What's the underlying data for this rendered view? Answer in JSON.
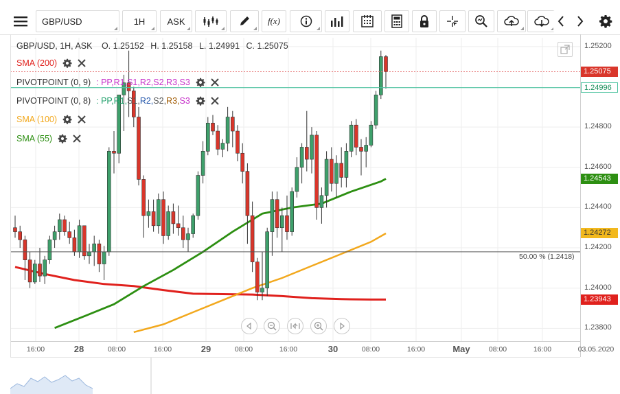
{
  "toolbar": {
    "menu_icon": "hamburger-icon",
    "symbol": "GBP/USD",
    "interval": "1H",
    "price_type": "ASK",
    "function_label": "f(x)",
    "icons": [
      "chart-type-icon",
      "drawing-pen-icon",
      "function-icon",
      "info-icon",
      "volume-bars-icon",
      "calendar-icon",
      "calculator-icon",
      "lock-icon",
      "crosshair-icon",
      "zoom-search-icon",
      "cloud-upload-icon",
      "cloud-download-icon",
      "chevron-left-icon",
      "chevron-right-icon",
      "gear-icon"
    ]
  },
  "header": {
    "title": "GBP/USD, 1H, ASK",
    "open": "O. 1.25152",
    "high": "H. 1.25158",
    "low": "L. 1.24991",
    "close": "C. 1.25075"
  },
  "indicators": [
    {
      "label": "SMA (200)",
      "color": "#e0211d"
    },
    {
      "label": "PIVOTPOINT (0, 9)",
      "color": "#333333",
      "suffix": [
        ": PP, ",
        "R1, ",
        "S1, ",
        "R2, ",
        "S2, ",
        "R3, ",
        "S3"
      ],
      "suffix_colors": [
        "#c62fc9",
        "#c62fc9",
        "#c62fc9",
        "#c62fc9",
        "#c62fc9",
        "#c62fc9",
        "#c62fc9"
      ]
    },
    {
      "label": "PIVOTPOINT (0, 8)",
      "color": "#333333",
      "suffix": [
        ": PP, ",
        "R1, ",
        "S1, ",
        "R2, ",
        "S2, ",
        "R3, ",
        "S3"
      ],
      "suffix_colors": [
        "#1e9e6a",
        "#1e9e6a",
        "#555555",
        "#2255aa",
        "#555555",
        "#a05a00",
        "#c62fc9"
      ]
    },
    {
      "label": "SMA (100)",
      "color": "#f2a81d"
    },
    {
      "label": "SMA (55)",
      "color": "#2d8f12"
    }
  ],
  "price_labels": [
    {
      "value": "1.25075",
      "bg": "#d9362b",
      "color": "#ffffff"
    },
    {
      "value": "1.24996",
      "bg": "#ffffff",
      "color": "#1a8f5c",
      "border": "#4fc3a1"
    },
    {
      "value": "1.24543",
      "bg": "#2d8f12",
      "color": "#ffffff"
    },
    {
      "value": "1.24272",
      "bg": "#f2b81d",
      "color": "#333333"
    },
    {
      "value": "1.23943",
      "bg": "#e0211d",
      "color": "#ffffff"
    }
  ],
  "fib_label": "50.00 % (1.2418)",
  "y_axis": [
    "1.25200",
    "1.24800",
    "1.24600",
    "1.24400",
    "1.24200",
    "1.24000",
    "1.23800"
  ],
  "x_axis": [
    {
      "label": "16:00",
      "day": false
    },
    {
      "label": "28",
      "day": true
    },
    {
      "label": "08:00",
      "day": false
    },
    {
      "label": "16:00",
      "day": false
    },
    {
      "label": "29",
      "day": true
    },
    {
      "label": "08:00",
      "day": false
    },
    {
      "label": "16:00",
      "day": false
    },
    {
      "label": "30",
      "day": true
    },
    {
      "label": "08:00",
      "day": false
    },
    {
      "label": "16:00",
      "day": false
    },
    {
      "label": "May",
      "day": true
    },
    {
      "label": "08:00",
      "day": false
    },
    {
      "label": "16:00",
      "day": false
    },
    {
      "label": "03.05.2020",
      "day": false
    }
  ],
  "nav_buttons": [
    "scroll-left-icon",
    "zoom-out-icon",
    "fit-icon",
    "zoom-in-icon",
    "scroll-right-icon"
  ],
  "chart_data": {
    "type": "candlestick",
    "ylim": [
      1.2375,
      1.2522
    ],
    "candles": [
      [
        1.243,
        1.2436,
        1.2425,
        1.2428
      ],
      [
        1.2428,
        1.2431,
        1.242,
        1.2424
      ],
      [
        1.2424,
        1.2426,
        1.2404,
        1.2414
      ],
      [
        1.2414,
        1.2418,
        1.24,
        1.2403
      ],
      [
        1.2403,
        1.2414,
        1.2402,
        1.2412
      ],
      [
        1.2412,
        1.242,
        1.2403,
        1.2406
      ],
      [
        1.2406,
        1.2416,
        1.2402,
        1.2414
      ],
      [
        1.2414,
        1.2426,
        1.2412,
        1.2424
      ],
      [
        1.2424,
        1.2431,
        1.242,
        1.2428
      ],
      [
        1.2428,
        1.2437,
        1.2424,
        1.2434
      ],
      [
        1.2434,
        1.2436,
        1.2426,
        1.2428
      ],
      [
        1.2428,
        1.2433,
        1.2422,
        1.2425
      ],
      [
        1.2425,
        1.2429,
        1.2416,
        1.2418
      ],
      [
        1.2418,
        1.2434,
        1.2415,
        1.2431
      ],
      [
        1.2431,
        1.2431,
        1.2414,
        1.2416
      ],
      [
        1.2416,
        1.2422,
        1.2412,
        1.2418
      ],
      [
        1.2418,
        1.2426,
        1.2411,
        1.2422
      ],
      [
        1.2422,
        1.2424,
        1.2408,
        1.2412
      ],
      [
        1.2412,
        1.2421,
        1.2404,
        1.2418
      ],
      [
        1.2418,
        1.247,
        1.2416,
        1.2468
      ],
      [
        1.2468,
        1.2478,
        1.2457,
        1.2467
      ],
      [
        1.2467,
        1.2496,
        1.2462,
        1.2496
      ],
      [
        1.2496,
        1.2506,
        1.2478,
        1.2502
      ],
      [
        1.2502,
        1.2518,
        1.2485,
        1.2498
      ],
      [
        1.2498,
        1.25,
        1.248,
        1.2485
      ],
      [
        1.2485,
        1.249,
        1.2451,
        1.2454
      ],
      [
        1.2454,
        1.2456,
        1.2425,
        1.2436
      ],
      [
        1.2436,
        1.2444,
        1.243,
        1.2438
      ],
      [
        1.2438,
        1.2444,
        1.2428,
        1.2431
      ],
      [
        1.2431,
        1.2447,
        1.2427,
        1.2444
      ],
      [
        1.2444,
        1.2448,
        1.2422,
        1.2426
      ],
      [
        1.2426,
        1.2441,
        1.2424,
        1.2438
      ],
      [
        1.2438,
        1.2442,
        1.2427,
        1.2432
      ],
      [
        1.2432,
        1.2441,
        1.2426,
        1.243
      ],
      [
        1.243,
        1.2436,
        1.242,
        1.2424
      ],
      [
        1.2424,
        1.243,
        1.2418,
        1.2427
      ],
      [
        1.2427,
        1.2437,
        1.2425,
        1.2436
      ],
      [
        1.2436,
        1.2458,
        1.2434,
        1.2456
      ],
      [
        1.2456,
        1.2473,
        1.2452,
        1.2468
      ],
      [
        1.2468,
        1.2485,
        1.2466,
        1.2482
      ],
      [
        1.2482,
        1.2486,
        1.2476,
        1.2478
      ],
      [
        1.2478,
        1.2481,
        1.2466,
        1.2469
      ],
      [
        1.2469,
        1.2474,
        1.2465,
        1.2472
      ],
      [
        1.2472,
        1.249,
        1.2468,
        1.2485
      ],
      [
        1.2485,
        1.2488,
        1.247,
        1.2478
      ],
      [
        1.2478,
        1.2481,
        1.2463,
        1.2467
      ],
      [
        1.2467,
        1.2472,
        1.2452,
        1.2458
      ],
      [
        1.2458,
        1.2462,
        1.2422,
        1.2436
      ],
      [
        1.2436,
        1.2443,
        1.2408,
        1.2413
      ],
      [
        1.2413,
        1.2415,
        1.2394,
        1.2398
      ],
      [
        1.2398,
        1.2418,
        1.2394,
        1.24
      ],
      [
        1.24,
        1.243,
        1.2396,
        1.2428
      ],
      [
        1.2428,
        1.2448,
        1.2416,
        1.2444
      ],
      [
        1.2444,
        1.2448,
        1.2425,
        1.243
      ],
      [
        1.243,
        1.244,
        1.2418,
        1.2436
      ],
      [
        1.2436,
        1.2446,
        1.2424,
        1.2428
      ],
      [
        1.2428,
        1.245,
        1.2426,
        1.2448
      ],
      [
        1.2448,
        1.2465,
        1.2445,
        1.246
      ],
      [
        1.246,
        1.2472,
        1.2452,
        1.247
      ],
      [
        1.247,
        1.2488,
        1.2458,
        1.2464
      ],
      [
        1.2464,
        1.248,
        1.2457,
        1.2476
      ],
      [
        1.2476,
        1.2478,
        1.2434,
        1.244
      ],
      [
        1.244,
        1.245,
        1.2432,
        1.2446
      ],
      [
        1.2446,
        1.2468,
        1.244,
        1.2464
      ],
      [
        1.2464,
        1.247,
        1.2448,
        1.2452
      ],
      [
        1.2452,
        1.2466,
        1.2445,
        1.2462
      ],
      [
        1.2462,
        1.247,
        1.245,
        1.2455
      ],
      [
        1.2455,
        1.2472,
        1.245,
        1.2468
      ],
      [
        1.2468,
        1.2483,
        1.2465,
        1.2481
      ],
      [
        1.2481,
        1.2484,
        1.2466,
        1.247
      ],
      [
        1.247,
        1.2474,
        1.2456,
        1.2468
      ],
      [
        1.2468,
        1.2475,
        1.246,
        1.2471
      ],
      [
        1.2471,
        1.2483,
        1.247,
        1.2481
      ],
      [
        1.2481,
        1.2498,
        1.2479,
        1.2496
      ],
      [
        1.2496,
        1.2518,
        1.2494,
        1.2515
      ],
      [
        1.2515,
        1.25158,
        1.24991,
        1.25075
      ]
    ],
    "sma200": [
      [
        0,
        1.24105
      ],
      [
        6,
        1.2407
      ],
      [
        12,
        1.2404
      ],
      [
        18,
        1.2402
      ],
      [
        24,
        1.2401
      ],
      [
        30,
        1.2399
      ],
      [
        36,
        1.23972
      ],
      [
        42,
        1.2397
      ],
      [
        48,
        1.23968
      ],
      [
        54,
        1.2396
      ],
      [
        60,
        1.2395
      ],
      [
        66,
        1.23945
      ],
      [
        72,
        1.23943
      ],
      [
        75,
        1.23943
      ]
    ],
    "sma100": [
      [
        24,
        1.23781
      ],
      [
        30,
        1.2382
      ],
      [
        36,
        1.2388
      ],
      [
        42,
        1.2394
      ],
      [
        48,
        1.24
      ],
      [
        54,
        1.2405
      ],
      [
        60,
        1.2411
      ],
      [
        66,
        1.2417
      ],
      [
        72,
        1.2423
      ],
      [
        75,
        1.24272
      ]
    ],
    "sma55": [
      [
        8,
        1.23802
      ],
      [
        14,
        1.2386
      ],
      [
        20,
        1.2392
      ],
      [
        26,
        1.2401
      ],
      [
        32,
        1.2409
      ],
      [
        38,
        1.2418
      ],
      [
        44,
        1.2428
      ],
      [
        50,
        1.2437
      ],
      [
        56,
        1.244
      ],
      [
        62,
        1.2442
      ],
      [
        68,
        1.2448
      ],
      [
        74,
        1.2453
      ],
      [
        75,
        1.24543
      ]
    ],
    "pivot1": 1.25075,
    "pivot2": 1.24996,
    "fib50": 1.2418
  }
}
